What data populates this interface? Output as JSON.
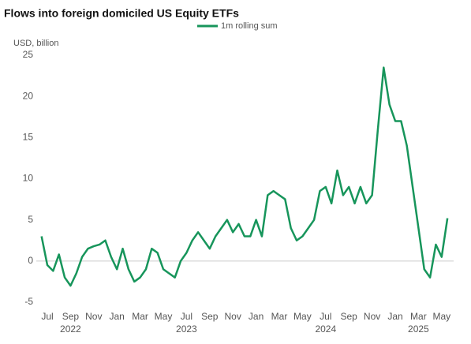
{
  "chart_data": {
    "type": "line",
    "title": "Flows into foreign domiciled US Equity ETFs",
    "y_label": "USD, billion",
    "categories": [
      null,
      "Jul",
      null,
      null,
      null,
      "Sep\n2022",
      null,
      null,
      null,
      "Nov",
      null,
      null,
      null,
      "Jan",
      null,
      null,
      null,
      "Mar",
      null,
      null,
      null,
      "May",
      null,
      null,
      null,
      "Jul\n2023",
      null,
      null,
      null,
      "Sep",
      null,
      null,
      null,
      "Nov",
      null,
      null,
      null,
      "Jan",
      null,
      null,
      null,
      "Mar",
      null,
      null,
      null,
      "May",
      null,
      null,
      null,
      "Jul\n2024",
      null,
      null,
      null,
      "Sep",
      null,
      null,
      null,
      "Nov",
      null,
      null,
      null,
      "Jan",
      null,
      null,
      null,
      "Mar\n2025",
      null,
      null,
      null,
      "May",
      null
    ],
    "series": [
      {
        "name": "1m rolling sum",
        "color": "#17955b",
        "values": [
          3,
          -0.5,
          -1.2,
          0.8,
          -2,
          -3,
          -1.5,
          0.5,
          1.5,
          1.8,
          2,
          2.5,
          0.5,
          -1,
          1.5,
          -1,
          -2.5,
          -2,
          -1,
          1.5,
          1,
          -1,
          -1.5,
          -2,
          0,
          1,
          2.5,
          3.5,
          2.5,
          1.5,
          3,
          4,
          5,
          3.5,
          4.5,
          3,
          3,
          5,
          3,
          8,
          8.5,
          8,
          7.5,
          4,
          2.5,
          3,
          4,
          5,
          8.5,
          9,
          7,
          11,
          8,
          9,
          7,
          9,
          7,
          8,
          16,
          23.5,
          19,
          17,
          17,
          14,
          9,
          4,
          -1,
          -2,
          2,
          0.5,
          5.2
        ]
      }
    ],
    "ylim": [
      -5,
      25
    ],
    "yticks": [
      -5,
      0,
      5,
      10,
      15,
      20,
      25
    ],
    "grid": false
  }
}
